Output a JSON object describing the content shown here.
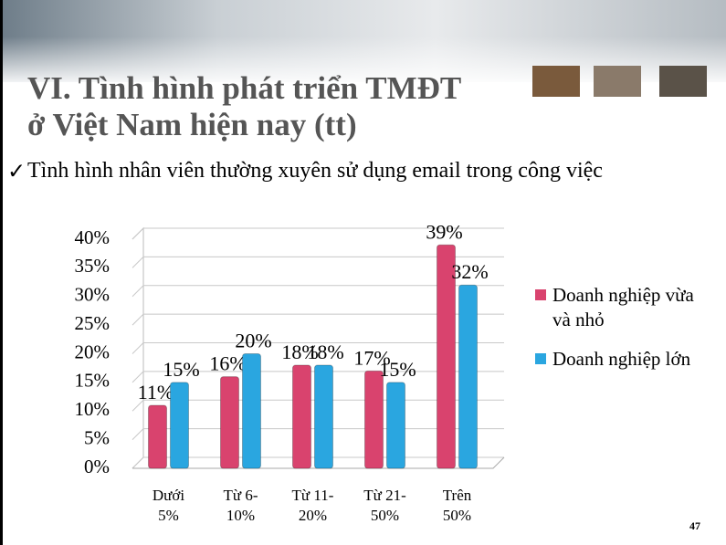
{
  "slide": {
    "title_line1": "VI. Tình hình phát triển TMĐT",
    "title_line2": "ở Việt Nam hiện nay (tt)",
    "bullet": "Tình hình nhân viên thường xuyên sử dụng email trong công việc",
    "page_number": "47"
  },
  "chart_data": {
    "type": "bar",
    "categories": [
      "Dưới 5%",
      "Từ 6-10%",
      "Từ 11-20%",
      "Từ 21-50%",
      "Trên 50%"
    ],
    "series": [
      {
        "name": "Doanh nghiệp vừa và nhỏ",
        "color": "#d9436e",
        "values": [
          11,
          16,
          18,
          17,
          39
        ],
        "value_labels": [
          "11%",
          "16%",
          "18%",
          "17%",
          "39%"
        ]
      },
      {
        "name": "Doanh nghiệp lớn",
        "color": "#2aa6e0",
        "values": [
          15,
          20,
          18,
          15,
          32
        ],
        "value_labels": [
          "15%",
          "20%",
          "18%",
          "15%",
          "32%"
        ]
      }
    ],
    "ylim": [
      0,
      40
    ],
    "yticks": [
      {
        "value": 0,
        "label": "0%"
      },
      {
        "value": 5,
        "label": "5%"
      },
      {
        "value": 10,
        "label": "10%"
      },
      {
        "value": 15,
        "label": "15%"
      },
      {
        "value": 20,
        "label": "20%"
      },
      {
        "value": 25,
        "label": "25%"
      },
      {
        "value": 30,
        "label": "30%"
      },
      {
        "value": 35,
        "label": "35%"
      },
      {
        "value": 40,
        "label": "40%"
      }
    ],
    "grid": true,
    "legend": "right"
  }
}
